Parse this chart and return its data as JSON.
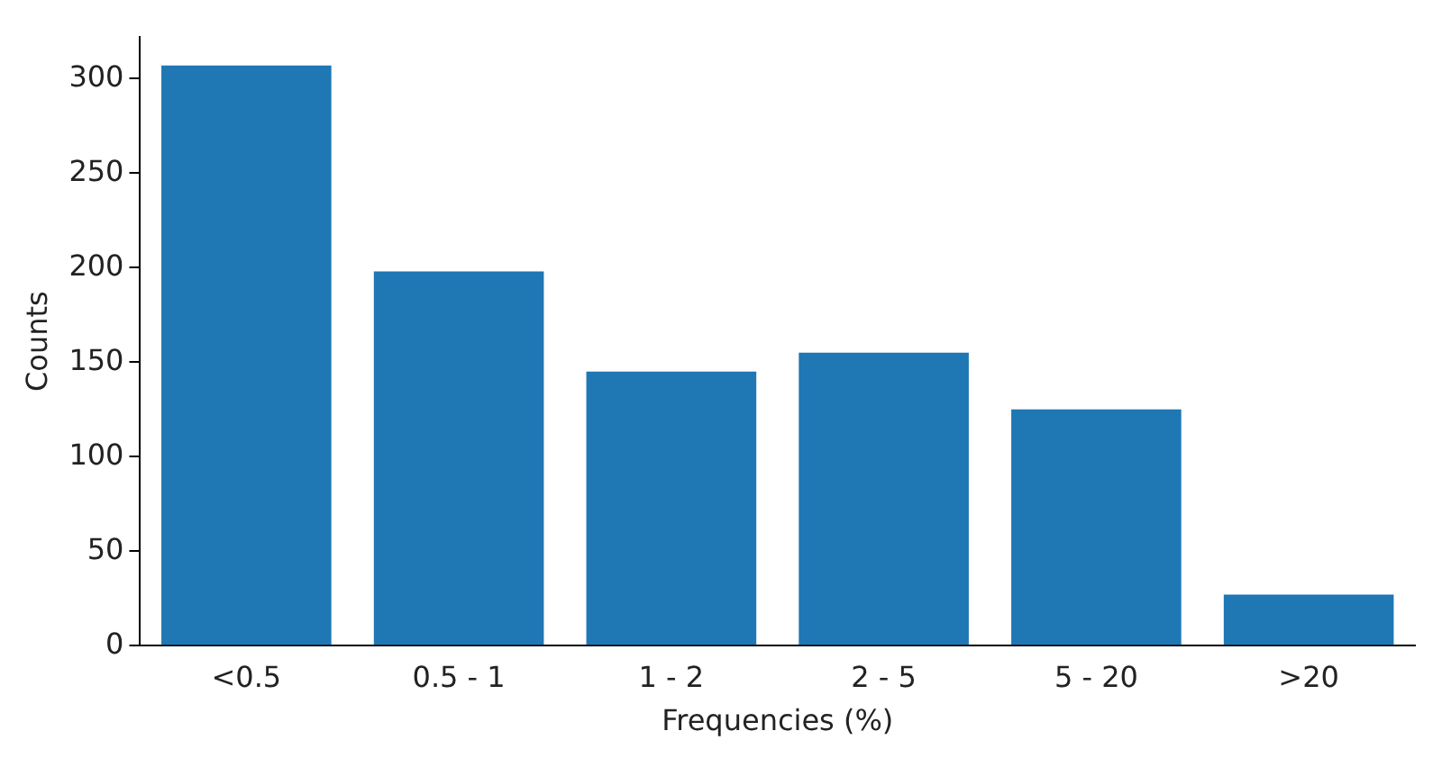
{
  "chart_data": {
    "type": "bar",
    "xlabel": "Frequencies (%)",
    "ylabel": "Counts",
    "categories": [
      "<0.5",
      "0.5 - 1",
      "1 - 2",
      "2 - 5",
      "5 - 20",
      ">20"
    ],
    "values": [
      307,
      198,
      145,
      155,
      125,
      27
    ],
    "color": "#1f77b4",
    "ylim": [
      0,
      322
    ],
    "yticks": [
      0,
      50,
      100,
      150,
      200,
      250,
      300
    ],
    "grid": false,
    "legend": false
  }
}
